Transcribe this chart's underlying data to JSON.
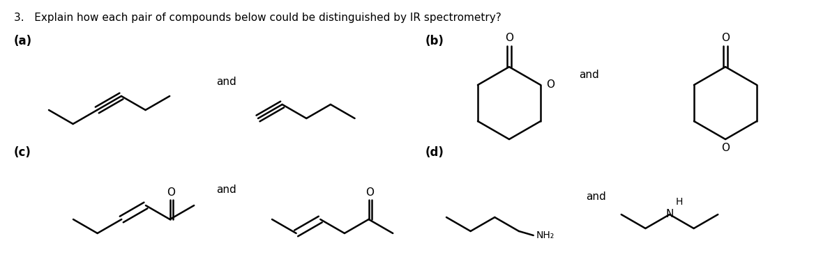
{
  "title": "3.   Explain how each pair of compounds below could be distinguished by IR spectrometry?",
  "bg_color": "#ffffff",
  "text_color": "#000000",
  "label_a": "(a)",
  "label_b": "(b)",
  "label_c": "(c)",
  "label_d": "(d)",
  "and_text": "and",
  "lw": 1.8,
  "fig_w": 12.0,
  "fig_h": 3.82,
  "dpi": 100
}
